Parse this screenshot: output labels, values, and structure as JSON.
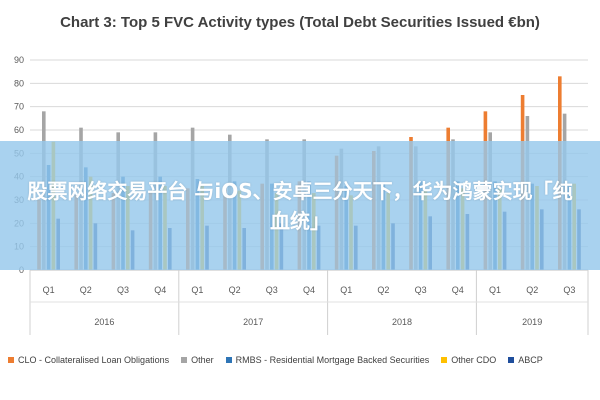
{
  "chart_data": {
    "type": "bar",
    "title": "Chart 3: Top 5 FVC Activity types (Total Debt Securities Issued €bn)",
    "ylim": [
      0,
      90
    ],
    "yticks": [
      0,
      10,
      20,
      30,
      40,
      50,
      60,
      70,
      80,
      90
    ],
    "grid": true,
    "legend_position": "bottom",
    "categories": [
      "Q1",
      "Q2",
      "Q3",
      "Q4",
      "Q1",
      "Q2",
      "Q3",
      "Q4",
      "Q1",
      "Q2",
      "Q3",
      "Q4",
      "Q1",
      "Q2",
      "Q3"
    ],
    "groups": [
      {
        "label": "2016",
        "span": 4
      },
      {
        "label": "2017",
        "span": 4
      },
      {
        "label": "2018",
        "span": 4
      },
      {
        "label": "2019",
        "span": 3
      }
    ],
    "series": [
      {
        "name": "CLO - Collateralised Loan Obligations",
        "color": "#ED7D31",
        "values": [
          30,
          32,
          33,
          34,
          35,
          36,
          37,
          38,
          49,
          51,
          57,
          61,
          68,
          75,
          83
        ]
      },
      {
        "name": "Other",
        "color": "#A5A5A5",
        "values": [
          68,
          61,
          59,
          59,
          61,
          58,
          56,
          56,
          52,
          53,
          53,
          56,
          59,
          66,
          67
        ]
      },
      {
        "name": "RMBS - Residential Mortgage Backed Securities",
        "color": "#2E75B6",
        "values": [
          45,
          44,
          40,
          40,
          39,
          38,
          37,
          38,
          36,
          37,
          38,
          38,
          38,
          37,
          36
        ]
      },
      {
        "name": "Other CDO",
        "color": "#FFC000",
        "values": [
          55,
          40,
          36,
          36,
          36,
          34,
          33,
          33,
          32,
          33,
          34,
          35,
          35,
          36,
          37
        ]
      },
      {
        "name": "ABCP",
        "color": "#1F4E9C",
        "values": [
          22,
          20,
          17,
          18,
          19,
          18,
          20,
          19,
          19,
          20,
          23,
          24,
          25,
          26,
          26
        ]
      }
    ]
  },
  "banner": {
    "text": "股票网络交易平台 与iOS、安卓三分天下，华为鸿蒙实现「纯血统」"
  }
}
